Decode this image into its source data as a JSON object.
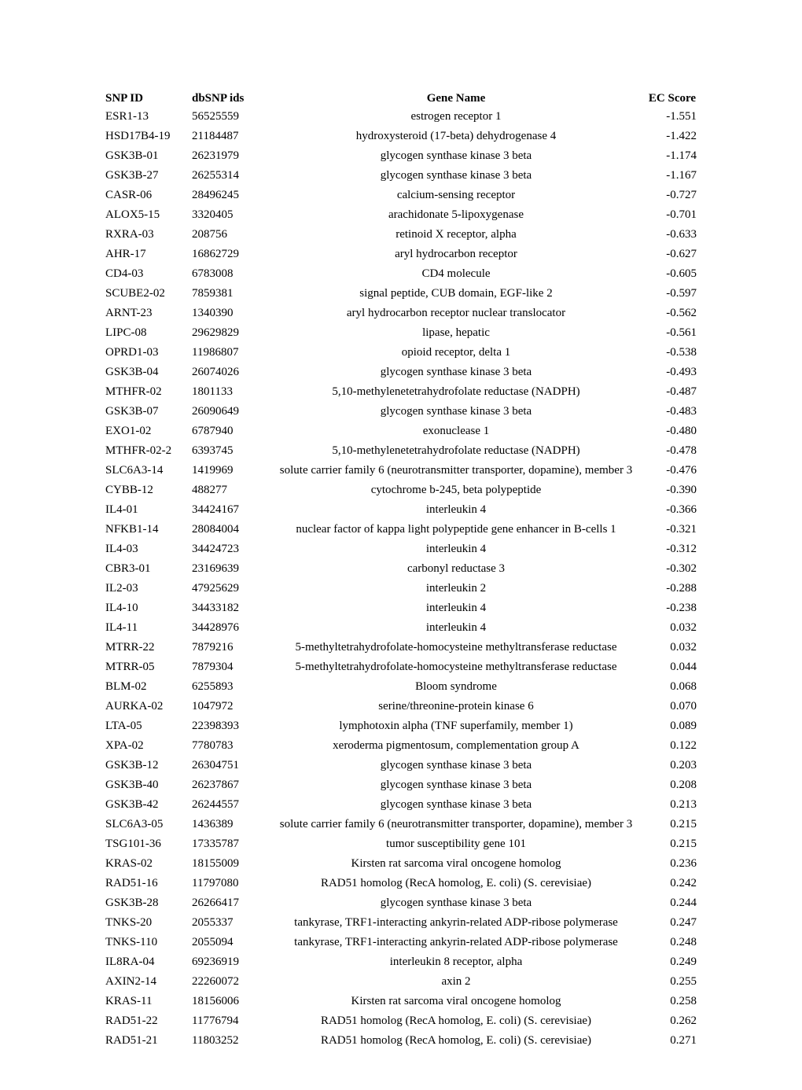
{
  "table": {
    "columns": [
      "SNP ID",
      "dbSNP ids",
      "Gene Name",
      "EC Score"
    ],
    "rows": [
      [
        "ESR1-13",
        "56525559",
        "estrogen receptor 1",
        "-1.551"
      ],
      [
        "HSD17B4-19",
        "21184487",
        "hydroxysteroid (17-beta) dehydrogenase 4",
        "-1.422"
      ],
      [
        "GSK3B-01",
        "26231979",
        "glycogen synthase kinase 3 beta",
        "-1.174"
      ],
      [
        "GSK3B-27",
        "26255314",
        "glycogen synthase kinase 3 beta",
        "-1.167"
      ],
      [
        "CASR-06",
        "28496245",
        "calcium-sensing receptor",
        "-0.727"
      ],
      [
        "ALOX5-15",
        "3320405",
        "arachidonate 5-lipoxygenase",
        "-0.701"
      ],
      [
        "RXRA-03",
        "208756",
        "retinoid X receptor, alpha",
        "-0.633"
      ],
      [
        "AHR-17",
        "16862729",
        "aryl hydrocarbon receptor",
        "-0.627"
      ],
      [
        "CD4-03",
        "6783008",
        "CD4 molecule",
        "-0.605"
      ],
      [
        "SCUBE2-02",
        "7859381",
        "signal peptide, CUB domain, EGF-like 2",
        "-0.597"
      ],
      [
        "ARNT-23",
        "1340390",
        "aryl hydrocarbon receptor nuclear translocator",
        "-0.562"
      ],
      [
        "LIPC-08",
        "29629829",
        "lipase, hepatic",
        "-0.561"
      ],
      [
        "OPRD1-03",
        "11986807",
        "opioid receptor, delta 1",
        "-0.538"
      ],
      [
        "GSK3B-04",
        "26074026",
        "glycogen synthase kinase 3 beta",
        "-0.493"
      ],
      [
        "MTHFR-02",
        "1801133",
        "5,10-methylenetetrahydrofolate reductase (NADPH)",
        "-0.487"
      ],
      [
        "GSK3B-07",
        "26090649",
        "glycogen synthase kinase 3 beta",
        "-0.483"
      ],
      [
        "EXO1-02",
        "6787940",
        "exonuclease 1",
        "-0.480"
      ],
      [
        "MTHFR-02-2",
        "6393745",
        "5,10-methylenetetrahydrofolate reductase (NADPH)",
        "-0.478"
      ],
      [
        "SLC6A3-14",
        "1419969",
        "solute carrier family 6 (neurotransmitter transporter, dopamine), member 3",
        "-0.476"
      ],
      [
        "CYBB-12",
        "488277",
        "cytochrome b-245, beta polypeptide",
        "-0.390"
      ],
      [
        "IL4-01",
        "34424167",
        "interleukin 4",
        "-0.366"
      ],
      [
        "NFKB1-14",
        "28084004",
        "nuclear factor of kappa light polypeptide gene enhancer in B-cells 1",
        "-0.321"
      ],
      [
        "IL4-03",
        "34424723",
        "interleukin 4",
        "-0.312"
      ],
      [
        "CBR3-01",
        "23169639",
        "carbonyl reductase 3",
        "-0.302"
      ],
      [
        "IL2-03",
        "47925629",
        "interleukin 2",
        "-0.288"
      ],
      [
        "IL4-10",
        "34433182",
        "interleukin 4",
        "-0.238"
      ],
      [
        "IL4-11",
        "34428976",
        "interleukin 4",
        "0.032"
      ],
      [
        "MTRR-22",
        "7879216",
        "5-methyltetrahydrofolate-homocysteine methyltransferase reductase",
        "0.032"
      ],
      [
        "MTRR-05",
        "7879304",
        "5-methyltetrahydrofolate-homocysteine methyltransferase reductase",
        "0.044"
      ],
      [
        "BLM-02",
        "6255893",
        "Bloom syndrome",
        "0.068"
      ],
      [
        "AURKA-02",
        "1047972",
        "serine/threonine-protein kinase 6",
        "0.070"
      ],
      [
        "LTA-05",
        "22398393",
        "lymphotoxin alpha (TNF superfamily, member 1)",
        "0.089"
      ],
      [
        "XPA-02",
        "7780783",
        "xeroderma pigmentosum, complementation group A",
        "0.122"
      ],
      [
        "GSK3B-12",
        "26304751",
        "glycogen synthase kinase 3 beta",
        "0.203"
      ],
      [
        "GSK3B-40",
        "26237867",
        "glycogen synthase kinase 3 beta",
        "0.208"
      ],
      [
        "GSK3B-42",
        "26244557",
        "glycogen synthase kinase 3 beta",
        "0.213"
      ],
      [
        "SLC6A3-05",
        "1436389",
        "solute carrier family 6 (neurotransmitter transporter, dopamine), member 3",
        "0.215"
      ],
      [
        "TSG101-36",
        "17335787",
        "tumor susceptibility gene 101",
        "0.215"
      ],
      [
        "KRAS-02",
        "18155009",
        "Kirsten rat sarcoma viral oncogene homolog",
        "0.236"
      ],
      [
        "RAD51-16",
        "11797080",
        "RAD51 homolog (RecA homolog, E. coli) (S. cerevisiae)",
        "0.242"
      ],
      [
        "GSK3B-28",
        "26266417",
        "glycogen synthase kinase 3 beta",
        "0.244"
      ],
      [
        "TNKS-20",
        "2055337",
        "tankyrase, TRF1-interacting ankyrin-related ADP-ribose polymerase",
        "0.247"
      ],
      [
        "TNKS-110",
        "2055094",
        "tankyrase, TRF1-interacting ankyrin-related ADP-ribose polymerase",
        "0.248"
      ],
      [
        "IL8RA-04",
        "69236919",
        "interleukin 8 receptor, alpha",
        "0.249"
      ],
      [
        "AXIN2-14",
        "22260072",
        "axin 2",
        "0.255"
      ],
      [
        "KRAS-11",
        "18156006",
        "Kirsten rat sarcoma viral oncogene homolog",
        "0.258"
      ],
      [
        "RAD51-22",
        "11776794",
        "RAD51 homolog (RecA homolog, E. coli) (S. cerevisiae)",
        "0.262"
      ],
      [
        "RAD51-21",
        "11803252",
        "RAD51 homolog (RecA homolog, E. coli) (S. cerevisiae)",
        "0.271"
      ]
    ],
    "column_alignments": [
      "left",
      "left",
      "center",
      "right"
    ],
    "font_family": "Times New Roman",
    "font_size": 15,
    "background_color": "#ffffff",
    "text_color": "#000000"
  }
}
